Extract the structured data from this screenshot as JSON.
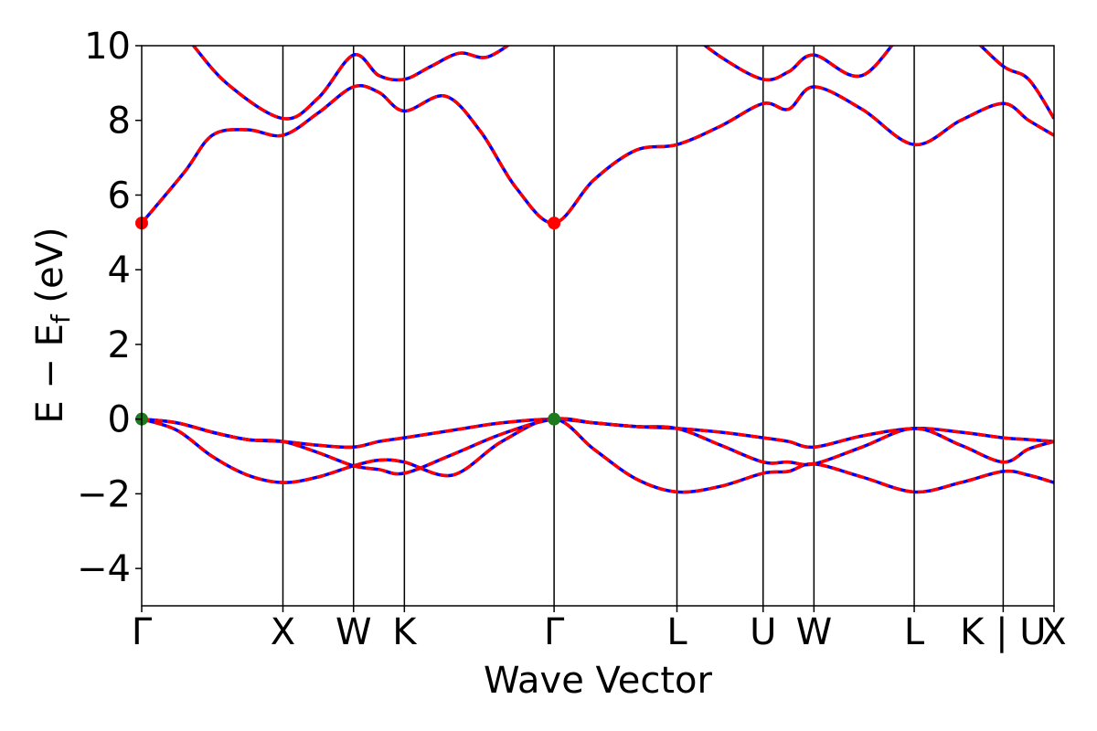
{
  "chart_data": {
    "type": "line",
    "xlabel": "Wave Vector",
    "ylabel_main": "E − E",
    "ylabel_sub": "f",
    "ylabel_unit": " (eV)",
    "ylim": [
      -5,
      10
    ],
    "yticks": [
      -4,
      -2,
      0,
      2,
      4,
      6,
      8,
      10
    ],
    "ytick_labels": [
      "−4",
      "−2",
      "0",
      "2",
      "4",
      "6",
      "8",
      "10"
    ],
    "k_axis_positions": [
      0,
      1.0,
      1.5,
      1.86,
      2.92,
      3.79,
      4.4,
      4.76,
      5.47,
      6.1,
      6.46
    ],
    "k_labels": [
      "Γ",
      "X",
      "W",
      "K",
      "Γ",
      "L",
      "U",
      "W",
      "L",
      "K | U",
      "X"
    ],
    "line_colors": {
      "solid": "#0000ff",
      "dashed": "#ff0000",
      "frame": "#000000",
      "vbm_marker": "#1e7a1e",
      "cbm_marker": "#ff0000"
    },
    "series": [
      {
        "x": [
          0,
          0.3,
          0.5,
          0.75,
          1.0,
          1.25,
          1.5,
          1.68,
          1.86,
          2.15,
          2.4,
          2.65,
          2.92,
          3.2,
          3.5,
          3.79,
          4.1,
          4.4,
          4.58,
          4.76,
          5.1,
          5.47,
          5.8,
          6.1,
          6.28,
          6.46
        ],
        "y": [
          5.25,
          6.6,
          7.6,
          7.75,
          7.6,
          8.2,
          8.9,
          8.75,
          8.25,
          8.65,
          7.7,
          6.2,
          5.25,
          6.4,
          7.2,
          7.35,
          7.85,
          8.45,
          8.3,
          8.9,
          8.3,
          7.35,
          8.0,
          8.45,
          8.0,
          7.6
        ]
      },
      {
        "x": [
          0,
          0.3,
          0.6,
          1.0,
          1.25,
          1.5,
          1.68,
          1.86,
          2.05,
          2.25,
          2.45,
          2.7
        ],
        "y": [
          11.5,
          10.3,
          9.0,
          8.05,
          8.6,
          9.75,
          9.2,
          9.1,
          9.45,
          9.8,
          9.7,
          10.3
        ]
      },
      {
        "x": [
          3.79,
          4.1,
          4.4,
          4.58,
          4.76,
          5.1,
          5.47,
          5.8,
          6.1,
          6.28,
          6.46
        ],
        "y": [
          10.6,
          9.7,
          9.1,
          9.3,
          9.75,
          9.2,
          10.6,
          10.4,
          9.45,
          9.1,
          8.05
        ]
      },
      {
        "x": [
          0,
          0.25,
          0.5,
          0.75,
          1.0,
          1.25,
          1.5,
          1.68,
          1.86,
          2.2,
          2.55,
          2.92,
          3.2,
          3.5,
          3.79,
          4.1,
          4.4,
          4.58,
          4.76,
          5.1,
          5.47,
          5.8,
          6.1,
          6.28,
          6.46
        ],
        "y": [
          0,
          -0.1,
          -0.35,
          -0.55,
          -0.6,
          -0.7,
          -0.75,
          -0.6,
          -0.5,
          -0.3,
          -0.1,
          0,
          -0.1,
          -0.2,
          -0.25,
          -0.35,
          -0.5,
          -0.6,
          -0.75,
          -0.45,
          -0.25,
          -0.35,
          -0.5,
          -0.55,
          -0.6
        ]
      },
      {
        "x": [
          0,
          0.25,
          0.5,
          0.75,
          1.0,
          1.25,
          1.5,
          1.68,
          1.86,
          2.2,
          2.55,
          2.92,
          3.2,
          3.5,
          3.79,
          4.1,
          4.4,
          4.58,
          4.76,
          5.1,
          5.47,
          5.8,
          6.1,
          6.28,
          6.46
        ],
        "y": [
          0,
          -0.3,
          -1.0,
          -1.5,
          -1.7,
          -1.55,
          -1.25,
          -1.1,
          -1.15,
          -1.5,
          -0.6,
          0,
          -0.8,
          -1.6,
          -1.95,
          -1.8,
          -1.45,
          -1.4,
          -1.2,
          -1.55,
          -1.95,
          -1.7,
          -1.4,
          -1.5,
          -1.7
        ]
      },
      {
        "x": [
          0,
          0.25,
          0.5,
          0.75,
          1.0,
          1.25,
          1.5,
          1.68,
          1.86,
          2.2,
          2.55,
          2.92,
          3.2,
          3.5,
          3.79,
          4.1,
          4.4,
          4.58,
          4.76,
          5.1,
          5.47,
          5.8,
          6.1,
          6.28,
          6.46
        ],
        "y": [
          0,
          -0.1,
          -0.35,
          -0.55,
          -0.6,
          -0.9,
          -1.25,
          -1.35,
          -1.45,
          -0.95,
          -0.4,
          0,
          -0.1,
          -0.2,
          -0.25,
          -0.7,
          -1.15,
          -1.15,
          -1.2,
          -0.75,
          -0.25,
          -0.7,
          -1.15,
          -0.8,
          -0.6
        ]
      }
    ],
    "markers": [
      {
        "x": 0,
        "y": 5.25,
        "kind": "cbm"
      },
      {
        "x": 2.92,
        "y": 5.25,
        "kind": "cbm"
      },
      {
        "x": 0,
        "y": 0,
        "kind": "vbm"
      },
      {
        "x": 2.92,
        "y": 0,
        "kind": "vbm"
      }
    ]
  }
}
